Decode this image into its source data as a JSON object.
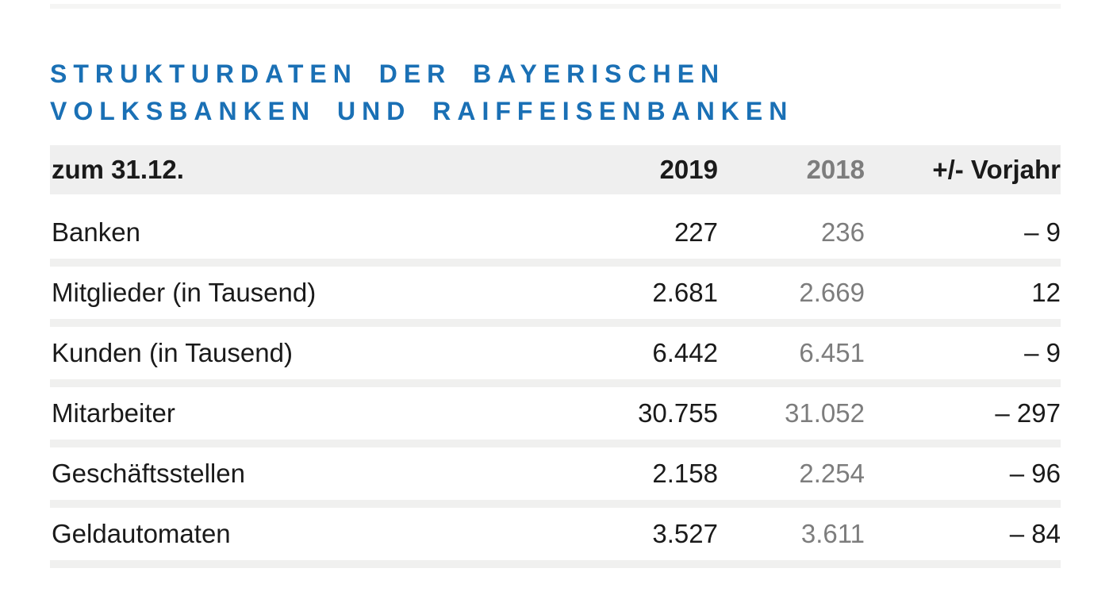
{
  "title": {
    "line1": "STRUKTURDATEN DER BAYERISCHEN",
    "line2": "VOLKSBANKEN UND RAIFFEISENBANKEN"
  },
  "table": {
    "header": {
      "label": "zum 31.12.",
      "col_2019": "2019",
      "col_2018": "2018",
      "col_change": "+/- Vorjahr"
    },
    "rows": [
      {
        "label": "Banken",
        "v2019": "227",
        "v2018": "236",
        "change": "– 9"
      },
      {
        "label": "Mitglieder (in Tausend)",
        "v2019": "2.681",
        "v2018": "2.669",
        "change": "12"
      },
      {
        "label": "Kunden (in Tausend)",
        "v2019": "6.442",
        "v2018": "6.451",
        "change": "– 9"
      },
      {
        "label": "Mitarbeiter",
        "v2019": "30.755",
        "v2018": "31.052",
        "change": "– 297"
      },
      {
        "label": "Geschäftsstellen",
        "v2019": "2.158",
        "v2018": "2.254",
        "change": "– 96"
      },
      {
        "label": "Geldautomaten",
        "v2019": "3.527",
        "v2018": "3.611",
        "change": "– 84"
      }
    ]
  },
  "colors": {
    "title_blue": "#1a70b5",
    "header_background": "#efefef",
    "row_divider_gray": "#f0f0ef",
    "text_dark": "#1a1a1a",
    "prior_year_gray": "#7d7d7d"
  },
  "chart_data": {
    "type": "table",
    "title": "Strukturdaten der bayerischen Volksbanken und Raiffeisenbanken",
    "subtitle": "zum 31.12.",
    "columns": [
      "zum 31.12.",
      "2019",
      "2018",
      "+/- Vorjahr"
    ],
    "rows": [
      [
        "Banken",
        227,
        236,
        -9
      ],
      [
        "Mitglieder (in Tausend)",
        2681,
        2669,
        12
      ],
      [
        "Kunden (in Tausend)",
        6442,
        6451,
        -9
      ],
      [
        "Mitarbeiter",
        30755,
        31052,
        -297
      ],
      [
        "Geschäftsstellen",
        2158,
        2254,
        -96
      ],
      [
        "Geldautomaten",
        3527,
        3611,
        -84
      ]
    ],
    "notes": "2018 column rendered in gray as prior-year comparison; negative changes shown with en dash, e.g. – 9"
  }
}
